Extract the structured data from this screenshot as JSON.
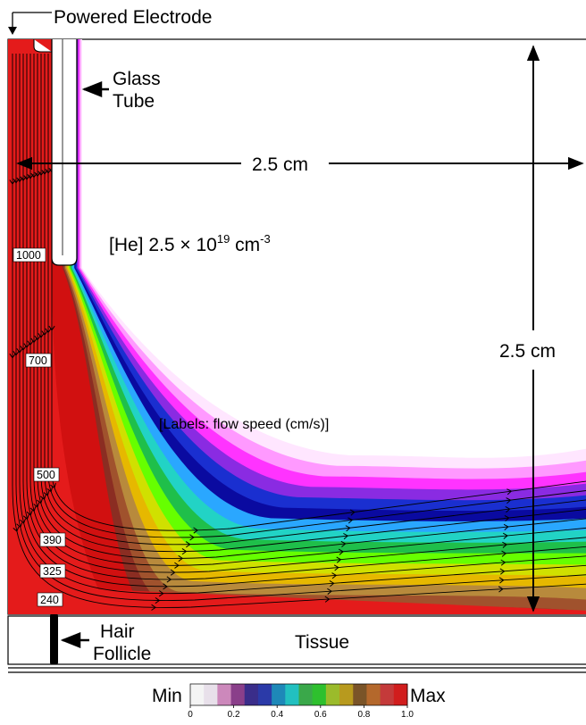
{
  "labels": {
    "powered_electrode": "Powered Electrode",
    "glass_tube_line1": "Glass",
    "glass_tube_line2": "Tube",
    "width_dimension": "2.5 cm",
    "height_dimension": "2.5 cm",
    "density_prefix": "[He] 2.5 ",
    "density_times": "×",
    "density_base": " 10",
    "density_exponent": "19",
    "density_unit": " cm",
    "density_unit_exponent": "-3",
    "flow_note": "[Labels: flow speed (cm/s)]",
    "hair_line1": "Hair",
    "hair_line2": "Follicle",
    "tissue": "Tissue"
  },
  "speed_labels": [
    "1000",
    "700",
    "500",
    "390",
    "325",
    "240"
  ],
  "colorbar": {
    "min_label": "Min",
    "max_label": "Max",
    "ticks": [
      "0",
      "0.2",
      "0.4",
      "0.6",
      "0.8",
      "1.0"
    ],
    "colors": [
      "#f4f4f4",
      "#e8e0ea",
      "#cc88bb",
      "#8a3f8a",
      "#3a2d8a",
      "#2b3aa8",
      "#1e88b8",
      "#22c0c0",
      "#3aa84a",
      "#2ec02e",
      "#9bbb2b",
      "#b89a1e",
      "#7a5428",
      "#b4682c",
      "#c43a3a",
      "#d11d1d"
    ]
  },
  "contour_colors": [
    "#ffe6ff",
    "#ff99ff",
    "#ff33ff",
    "#8a2be2",
    "#1a2fd0",
    "#0a0aa0",
    "#2aa7ff",
    "#22d3c5",
    "#1fbf4a",
    "#66ff00",
    "#d0e000",
    "#e6b800",
    "#b88a3c",
    "#a0522d",
    "#8b2d22",
    "#d11010"
  ]
}
